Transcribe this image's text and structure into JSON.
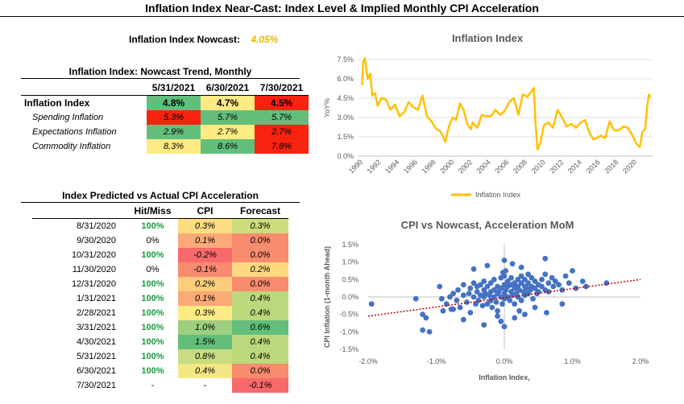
{
  "title": "Inflation Index Near-Cast: Index Level & Implied Monthly CPI Acceleration",
  "nowcast": {
    "label": "Inflation Index Nowcast:",
    "value": "4.05%"
  },
  "trend": {
    "title": "Inflation Index: Nowcast Trend, Monthly",
    "columns": [
      "5/31/2021",
      "6/30/2021",
      "7/30/2021"
    ],
    "rows": [
      {
        "label": "Inflation Index",
        "values": [
          "4.8%",
          "4.7%",
          "4.5%"
        ],
        "colors": [
          "#63be7b",
          "#ffeb84",
          "#f8230f"
        ]
      },
      {
        "label": "Spending Inflation",
        "values": [
          "5.3%",
          "5.7%",
          "5.7%"
        ],
        "colors": [
          "#f8230f",
          "#63be7b",
          "#63be7b"
        ]
      },
      {
        "label": "Expectations Inflation",
        "values": [
          "2.9%",
          "2.7%",
          "2.7%"
        ],
        "colors": [
          "#63be7b",
          "#ffeb84",
          "#f8230f"
        ]
      },
      {
        "label": "Commodity Inflation",
        "values": [
          "8.3%",
          "8.6%",
          "7.8%"
        ],
        "colors": [
          "#ffeb84",
          "#63be7b",
          "#f8230f"
        ]
      }
    ]
  },
  "accel": {
    "title": "Index Predicted vs Actual CPI Acceleration",
    "headers": [
      "Hit/Miss",
      "CPI",
      "Forecast"
    ],
    "rows": [
      {
        "date": "8/31/2020",
        "hit": "100%",
        "cpi": "0.3%",
        "forecast": "0.3%",
        "cpi_color": "#ffdd82",
        "fc_color": "#cddc7d"
      },
      {
        "date": "9/30/2020",
        "hit": "0%",
        "cpi": "0.1%",
        "forecast": "0.0%",
        "cpi_color": "#fbaa77",
        "fc_color": "#f98b6f"
      },
      {
        "date": "10/31/2020",
        "hit": "100%",
        "cpi": "-0.2%",
        "forecast": "0.0%",
        "cpi_color": "#f8696b",
        "fc_color": "#f98b6f"
      },
      {
        "date": "11/30/2020",
        "hit": "0%",
        "cpi": "-0.1%",
        "forecast": "0.2%",
        "cpi_color": "#f98b71",
        "fc_color": "#ffd980"
      },
      {
        "date": "12/31/2020",
        "hit": "100%",
        "cpi": "0.2%",
        "forecast": "0.0%",
        "cpi_color": "#fdcc7d",
        "fc_color": "#f98b6f"
      },
      {
        "date": "1/31/2021",
        "hit": "100%",
        "cpi": "0.1%",
        "forecast": "0.4%",
        "cpi_color": "#fbaa77",
        "fc_color": "#bcd87c"
      },
      {
        "date": "2/28/2021",
        "hit": "100%",
        "cpi": "0.3%",
        "forecast": "0.4%",
        "cpi_color": "#ffeb84",
        "fc_color": "#bcd87c"
      },
      {
        "date": "3/31/2021",
        "hit": "100%",
        "cpi": "1.0%",
        "forecast": "0.6%",
        "cpi_color": "#9dcf7f",
        "fc_color": "#63be7b"
      },
      {
        "date": "4/30/2021",
        "hit": "100%",
        "cpi": "1.5%",
        "forecast": "0.4%",
        "cpi_color": "#63be7b",
        "fc_color": "#bcd87c"
      },
      {
        "date": "5/31/2021",
        "hit": "100%",
        "cpi": "0.8%",
        "forecast": "0.4%",
        "cpi_color": "#c9dc81",
        "fc_color": "#bcd87c"
      },
      {
        "date": "6/30/2021",
        "hit": "100%",
        "cpi": "0.4%",
        "forecast": "0.0%",
        "cpi_color": "#f3e783",
        "fc_color": "#f98b6f"
      },
      {
        "date": "7/30/2021",
        "hit": "-",
        "cpi": "-",
        "forecast": "-0.1%",
        "cpi_color": "",
        "fc_color": "#f8696b"
      }
    ]
  },
  "chart_data": [
    {
      "type": "line",
      "title": "Inflation Index",
      "ylabel": "YoY%",
      "xlabel": "",
      "ylim": [
        0,
        7.5
      ],
      "yticks": [
        "0.0%",
        "1.5%",
        "3.0%",
        "4.5%",
        "6.0%",
        "7.5%"
      ],
      "xticks": [
        "1990",
        "1992",
        "1994",
        "1996",
        "1998",
        "2000",
        "2002",
        "2004",
        "2006",
        "2008",
        "2010",
        "2012",
        "2014",
        "2016",
        "2018",
        "2020"
      ],
      "legend": "bottom",
      "color": "#ffc000",
      "series": [
        {
          "name": "Inflation Index",
          "x": [
            1989.9,
            1990.0,
            1990.2,
            1990.5,
            1990.8,
            1991.0,
            1991.3,
            1991.6,
            1992.0,
            1992.5,
            1993.0,
            1993.5,
            1994.0,
            1994.5,
            1995.0,
            1995.5,
            1996.0,
            1996.5,
            1997.0,
            1997.5,
            1998.0,
            1998.5,
            1999.0,
            1999.4,
            1999.8,
            2000.2,
            2000.6,
            2001.0,
            2001.4,
            2001.8,
            2002.0,
            2002.5,
            2003.0,
            2003.5,
            2004.0,
            2004.5,
            2005.0,
            2005.5,
            2006.0,
            2006.5,
            2007.0,
            2007.5,
            2008.0,
            2008.4,
            2008.7,
            2008.9,
            2009.1,
            2009.4,
            2009.8,
            2010.3,
            2010.8,
            2011.3,
            2011.8,
            2012.3,
            2012.8,
            2013.3,
            2013.8,
            2014.3,
            2014.8,
            2015.2,
            2015.6,
            2016.0,
            2016.5,
            2017.0,
            2017.5,
            2018.0,
            2018.5,
            2019.0,
            2019.5,
            2020.0,
            2020.3,
            2020.6,
            2020.9,
            2021.1,
            2021.3,
            2021.5
          ],
          "y": [
            5.5,
            7.3,
            7.6,
            6.0,
            6.4,
            4.7,
            4.9,
            3.9,
            4.5,
            4.4,
            3.6,
            4.0,
            3.1,
            3.4,
            4.2,
            3.8,
            3.6,
            4.7,
            3.1,
            2.7,
            2.1,
            1.9,
            1.1,
            2.3,
            3.0,
            2.8,
            4.1,
            3.6,
            2.5,
            2.1,
            2.6,
            2.2,
            3.2,
            3.1,
            3.1,
            3.6,
            3.2,
            3.5,
            4.2,
            4.5,
            3.2,
            4.8,
            4.6,
            5.0,
            5.3,
            2.4,
            0.5,
            1.0,
            2.4,
            2.6,
            2.2,
            3.6,
            3.0,
            2.3,
            2.5,
            2.2,
            2.6,
            2.8,
            1.8,
            1.3,
            1.4,
            1.6,
            1.4,
            2.7,
            2.0,
            2.0,
            2.3,
            2.2,
            1.6,
            0.9,
            0.7,
            1.9,
            2.1,
            3.8,
            4.8,
            4.6
          ]
        }
      ]
    },
    {
      "type": "scatter",
      "title": "CPI vs Nowcast, Acceleration MoM",
      "xlabel": "Inflation Index,",
      "ylabel": "CPI Inflation (1-month Ahead)",
      "xlim": [
        -2.0,
        2.0
      ],
      "ylim": [
        -1.5,
        1.5
      ],
      "xticks": [
        "-2.0%",
        "-1.0%",
        "0.0%",
        "1.0%",
        "2.0%"
      ],
      "yticks": [
        "-1.5%",
        "-1.0%",
        "-0.5%",
        "0.0%",
        "0.5%",
        "1.0%",
        "1.5%"
      ],
      "color": "#4472c4",
      "trendline": {
        "x": [
          -2.0,
          2.0
        ],
        "y": [
          -0.55,
          0.5
        ],
        "color": "#c00000"
      },
      "points": {
        "x": [
          -1.95,
          -1.3,
          -1.2,
          -1.15,
          -1.1,
          -0.95,
          -0.92,
          -0.9,
          -0.85,
          -0.8,
          -0.78,
          -0.75,
          -0.7,
          -0.68,
          -0.65,
          -0.6,
          -0.6,
          -0.55,
          -0.52,
          -0.5,
          -0.5,
          -0.45,
          -0.45,
          -0.42,
          -0.4,
          -0.4,
          -0.38,
          -0.35,
          -0.35,
          -0.32,
          -0.3,
          -0.3,
          -0.3,
          -0.28,
          -0.25,
          -0.25,
          -0.22,
          -0.2,
          -0.2,
          -0.2,
          -0.18,
          -0.15,
          -0.15,
          -0.15,
          -0.12,
          -0.1,
          -0.1,
          -0.1,
          -0.08,
          -0.05,
          -0.05,
          -0.05,
          -0.03,
          0.0,
          0.0,
          0.0,
          0.0,
          0.02,
          0.05,
          0.05,
          0.05,
          0.08,
          0.1,
          0.1,
          0.1,
          0.12,
          0.15,
          0.15,
          0.15,
          0.18,
          0.2,
          0.2,
          0.2,
          0.22,
          0.25,
          0.25,
          0.25,
          0.28,
          0.3,
          0.3,
          0.3,
          0.33,
          0.35,
          0.35,
          0.38,
          0.4,
          0.4,
          0.42,
          0.45,
          0.45,
          0.48,
          0.5,
          0.5,
          0.55,
          0.55,
          0.6,
          0.6,
          0.65,
          0.65,
          0.7,
          0.72,
          0.75,
          0.8,
          0.85,
          0.9,
          0.95,
          1.0,
          1.05,
          1.15,
          1.2,
          1.5,
          -0.6,
          -0.3,
          -0.1,
          0.15,
          0.3,
          0.45,
          0.62,
          0.85,
          0.0,
          -0.05,
          0.02,
          0.0,
          0.25,
          -0.45,
          0.35,
          -0.25,
          0.12,
          -0.75,
          -1.2,
          0.6,
          0.22,
          -0.02
        ],
        "y": [
          -0.2,
          -0.05,
          -0.95,
          -0.6,
          -1.0,
          0.3,
          -0.05,
          -0.4,
          -0.2,
          0.0,
          -0.35,
          0.1,
          -0.1,
          0.2,
          -0.3,
          0.05,
          0.35,
          -0.15,
          0.1,
          0.25,
          -0.45,
          0.0,
          0.4,
          -0.2,
          0.15,
          0.3,
          -0.1,
          0.05,
          0.35,
          -0.25,
          0.0,
          0.2,
          0.45,
          0.1,
          -0.2,
          0.3,
          0.05,
          -0.1,
          0.15,
          0.4,
          -0.3,
          0.2,
          0.0,
          0.5,
          -0.15,
          0.1,
          0.3,
          -0.4,
          0.15,
          0.0,
          0.25,
          0.55,
          -0.2,
          0.1,
          0.35,
          -0.05,
          0.6,
          0.2,
          0.0,
          0.3,
          0.45,
          -0.1,
          0.15,
          0.35,
          0.55,
          0.05,
          0.25,
          0.4,
          -0.2,
          0.1,
          0.3,
          0.5,
          0.0,
          0.2,
          0.4,
          -0.1,
          0.6,
          0.15,
          0.3,
          0.05,
          0.5,
          0.25,
          0.4,
          0.1,
          0.2,
          0.3,
          0.55,
          -0.05,
          0.25,
          0.45,
          0.1,
          0.35,
          0.15,
          0.3,
          0.5,
          0.2,
          0.65,
          0.4,
          0.15,
          0.55,
          0.3,
          0.45,
          0.35,
          0.2,
          0.6,
          0.4,
          0.75,
          0.25,
          0.45,
          0.3,
          0.4,
          -0.65,
          -0.8,
          -0.55,
          -0.6,
          -0.5,
          -0.3,
          -0.45,
          -0.2,
          -0.85,
          -0.7,
          0.75,
          1.05,
          0.85,
          0.8,
          0.65,
          0.9,
          0.95,
          -0.35,
          -0.5,
          1.1,
          -0.4,
          0.7
        ]
      }
    }
  ]
}
